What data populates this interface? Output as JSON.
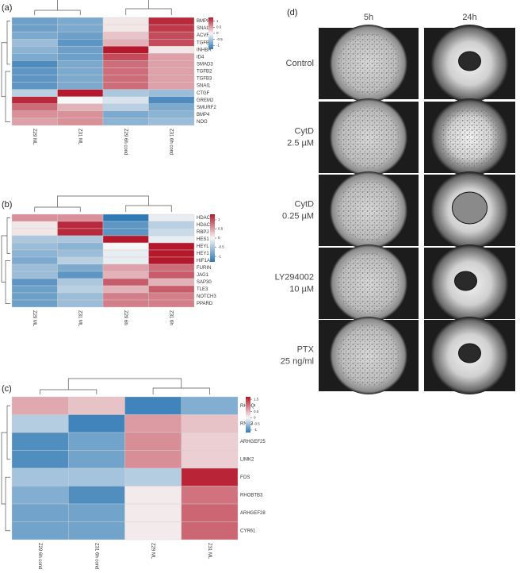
{
  "chart_data": [
    {
      "type": "heatmap",
      "label": "(a)",
      "columns": [
        "Z29 ML",
        "Z31 ML",
        "Z29 6h cond",
        "Z31 6h cond"
      ],
      "rows": [
        "BMP8A",
        "SNAI2",
        "ACVR1",
        "TGFB1",
        "INHBA",
        "ID4",
        "SMAD3",
        "TGFB2",
        "TGFB3",
        "SNAI1",
        "CTGF",
        "GREM2",
        "SMURF2",
        "BMP4",
        "NOG"
      ],
      "values": [
        [
          -0.9,
          -0.8,
          0.1,
          1.2
        ],
        [
          -0.9,
          -0.8,
          0.1,
          1.1
        ],
        [
          -0.8,
          -0.9,
          0.3,
          1.0
        ],
        [
          -0.6,
          -1.0,
          0.4,
          1.0
        ],
        [
          -0.7,
          -0.9,
          1.3,
          0.1
        ],
        [
          -0.8,
          -0.9,
          1.0,
          0.5
        ],
        [
          -1.1,
          -0.8,
          0.8,
          0.5
        ],
        [
          -1.0,
          -0.8,
          0.8,
          0.5
        ],
        [
          -1.0,
          -0.8,
          0.8,
          0.5
        ],
        [
          -1.0,
          -0.8,
          0.8,
          0.5
        ],
        [
          -0.4,
          1.5,
          -0.5,
          -0.6
        ],
        [
          1.2,
          0.0,
          -0.2,
          -1.1
        ],
        [
          0.8,
          0.4,
          -0.4,
          -0.8
        ],
        [
          0.6,
          0.6,
          -0.8,
          -0.7
        ],
        [
          0.5,
          0.6,
          -0.7,
          -0.6
        ]
      ],
      "colors": [
        "#2f79b5",
        "#f7f7f7",
        "#b5172b"
      ],
      "zlim": [
        -1.3,
        1.3
      ],
      "zticks": [
        1,
        0.5,
        0,
        -0.5,
        -1
      ]
    },
    {
      "type": "heatmap",
      "label": "(b)",
      "columns": [
        "Z29 ML",
        "Z31 ML",
        "Z29 6h",
        "Z31 6h"
      ],
      "rows": [
        "HDAC11",
        "HDAC7",
        "RBPJ",
        "HES1",
        "HEYL",
        "HEY1",
        "HIF1A",
        "FURIN",
        "JAG1",
        "SAP30",
        "TLE3",
        "NOTCH3",
        "PPARD"
      ],
      "values": [
        [
          0.6,
          0.6,
          -1.3,
          -0.1
        ],
        [
          0.1,
          1.2,
          -1.0,
          -0.4
        ],
        [
          0.1,
          1.2,
          -1.0,
          -0.3
        ],
        [
          -0.5,
          -0.5,
          1.3,
          -0.1
        ],
        [
          -0.6,
          -0.7,
          0.0,
          1.3
        ],
        [
          -0.7,
          -0.6,
          -0.1,
          1.3
        ],
        [
          -0.8,
          -0.4,
          -0.1,
          1.3
        ],
        [
          -0.6,
          -0.8,
          0.5,
          0.8
        ],
        [
          -0.6,
          -1.0,
          0.4,
          0.9
        ],
        [
          -1.0,
          -0.5,
          0.9,
          0.4
        ],
        [
          -0.9,
          -0.4,
          0.4,
          0.9
        ],
        [
          -0.9,
          -0.6,
          0.7,
          0.7
        ],
        [
          -0.9,
          -0.6,
          0.7,
          0.7
        ]
      ],
      "colors": [
        "#2f79b5",
        "#f7f7f7",
        "#b5172b"
      ],
      "zlim": [
        -1.3,
        1.3
      ],
      "zticks": [
        1,
        0.5,
        0,
        -0.5,
        -1
      ]
    },
    {
      "type": "heatmap",
      "label": "(c)",
      "columns": [
        "Z29 6h cond",
        "Z31 6h cond",
        "Z29 ML",
        "Z31 ML"
      ],
      "rows": [
        "RHOQ",
        "RND3",
        "ARHGEF25",
        "LIMK2",
        "FOS",
        "RHOBTB3",
        "ARHGEF28",
        "CYR61"
      ],
      "values": [
        [
          0.6,
          0.4,
          -1.1,
          -0.7
        ],
        [
          -0.4,
          -1.1,
          0.7,
          0.4
        ],
        [
          -1.0,
          -0.8,
          0.8,
          0.3
        ],
        [
          -1.0,
          -0.8,
          0.8,
          0.3
        ],
        [
          -0.5,
          -0.5,
          -0.4,
          1.6
        ],
        [
          -0.7,
          -1.0,
          0.1,
          1.0
        ],
        [
          -0.8,
          -0.8,
          0.1,
          1.1
        ],
        [
          -0.8,
          -0.8,
          0.1,
          1.1
        ]
      ],
      "colors": [
        "#2f79b5",
        "#f7f7f7",
        "#b5172b"
      ],
      "zlim": [
        -1.2,
        1.7
      ],
      "zticks": [
        1.5,
        1,
        0.5,
        0,
        -0.5,
        -1
      ]
    }
  ],
  "panel_d": {
    "label": "(d)",
    "columns": [
      "5h",
      "24h"
    ],
    "rows": [
      [
        "Control"
      ],
      [
        "CytD",
        "2.5 µM"
      ],
      [
        "CytD",
        "0.25 µM"
      ],
      [
        "LY294002",
        "10 µM"
      ],
      [
        "PTX",
        "25 ng/ml"
      ]
    ]
  }
}
